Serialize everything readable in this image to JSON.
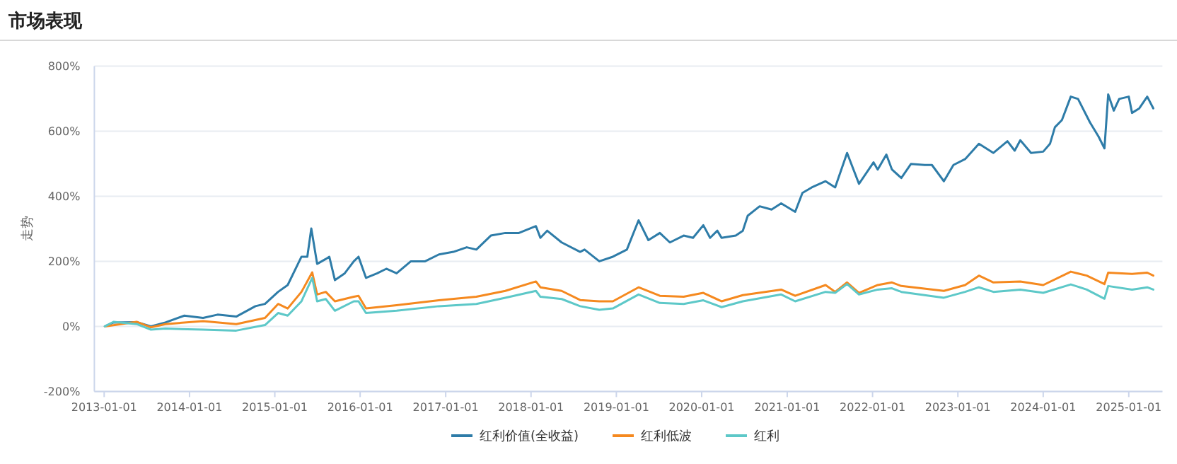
{
  "chart_data": {
    "type": "line",
    "title": "市场表现",
    "ylabel": "走势",
    "xlim": [
      "2012-11-20",
      "2025-05-25"
    ],
    "xticks": [
      "2013-01-01",
      "2014-01-01",
      "2015-01-01",
      "2016-01-01",
      "2017-01-01",
      "2018-01-01",
      "2019-01-01",
      "2020-01-01",
      "2021-01-01",
      "2022-01-01",
      "2023-01-01",
      "2024-01-01",
      "2025-01-01"
    ],
    "ylim": [
      -200,
      800
    ],
    "yticks": [
      {
        "value": -200,
        "label": "-200%"
      },
      {
        "value": 0,
        "label": "0%"
      },
      {
        "value": 200,
        "label": "200%"
      },
      {
        "value": 400,
        "label": "400%"
      },
      {
        "value": 600,
        "label": "600%"
      },
      {
        "value": 800,
        "label": "800%"
      }
    ],
    "grid": "y",
    "legend": "bottom",
    "marker": "none",
    "line_style": "solid",
    "series": [
      {
        "name": "红利价值(全收益)",
        "color": "#2e7ca8",
        "x": [
          "2013-01-04",
          "2013-02-10",
          "2013-05-20",
          "2013-07-20",
          "2013-09-20",
          "2013-12-10",
          "2014-02-28",
          "2014-05-01",
          "2014-07-20",
          "2014-10-10",
          "2014-11-20",
          "2015-01-15",
          "2015-02-25",
          "2015-04-25",
          "2015-05-20",
          "2015-06-06",
          "2015-07-01",
          "2015-08-07",
          "2015-08-22",
          "2015-09-15",
          "2015-10-27",
          "2015-12-05",
          "2015-12-25",
          "2016-01-26",
          "2016-03-14",
          "2016-04-22",
          "2016-06-05",
          "2016-08-05",
          "2016-10-05",
          "2016-12-03",
          "2017-02-03",
          "2017-04-01",
          "2017-05-12",
          "2017-07-13",
          "2017-09-13",
          "2017-11-10",
          "2018-01-22",
          "2018-02-10",
          "2018-03-11",
          "2018-05-12",
          "2018-07-30",
          "2018-08-18",
          "2018-10-20",
          "2018-12-17",
          "2019-02-15",
          "2019-04-06",
          "2019-05-18",
          "2019-07-06",
          "2019-08-18",
          "2019-10-16",
          "2019-11-25",
          "2020-01-08",
          "2020-02-06",
          "2020-03-08",
          "2020-03-26",
          "2020-05-26",
          "2020-06-25",
          "2020-07-16",
          "2020-09-05",
          "2020-10-26",
          "2020-12-06",
          "2021-02-04",
          "2021-03-07",
          "2021-04-16",
          "2021-06-14",
          "2021-07-25",
          "2021-09-14",
          "2021-11-04",
          "2022-01-05",
          "2022-01-23",
          "2022-03-01",
          "2022-03-25",
          "2022-05-04",
          "2022-06-14",
          "2022-08-12",
          "2022-09-12",
          "2022-11-02",
          "2022-12-13",
          "2023-02-01",
          "2023-04-01",
          "2023-06-02",
          "2023-08-01",
          "2023-09-01",
          "2023-09-25",
          "2023-11-10",
          "2024-01-01",
          "2024-01-30",
          "2024-02-20",
          "2024-03-21",
          "2024-04-28",
          "2024-05-29",
          "2024-07-19",
          "2024-08-25",
          "2024-09-19",
          "2024-10-05",
          "2024-10-29",
          "2024-11-21",
          "2025-01-01",
          "2025-01-15",
          "2025-02-15",
          "2025-03-21",
          "2025-04-16"
        ],
        "values": [
          0,
          12,
          13,
          0,
          12,
          33,
          26,
          36,
          30,
          62,
          69,
          106,
          127,
          214,
          214,
          301,
          192,
          207,
          214,
          142,
          163,
          200,
          214,
          149,
          163,
          177,
          163,
          200,
          200,
          221,
          229,
          243,
          236,
          279,
          287,
          287,
          308,
          272,
          294,
          258,
          229,
          236,
          200,
          214,
          236,
          326,
          265,
          287,
          258,
          279,
          272,
          311,
          272,
          294,
          272,
          279,
          294,
          340,
          369,
          359,
          378,
          352,
          410,
          427,
          446,
          427,
          533,
          438,
          504,
          482,
          528,
          482,
          456,
          499,
          496,
          496,
          446,
          496,
          514,
          561,
          533,
          569,
          540,
          572,
          533,
          537,
          561,
          612,
          634,
          706,
          699,
          627,
          583,
          547,
          713,
          663,
          699,
          706,
          656,
          670,
          706,
          670
        ]
      },
      {
        "name": "红利低波",
        "color": "#f5891f",
        "x": [
          "2013-01-04",
          "2013-05-20",
          "2013-07-20",
          "2013-09-20",
          "2014-02-28",
          "2014-07-20",
          "2014-11-20",
          "2015-01-15",
          "2015-02-25",
          "2015-04-25",
          "2015-06-10",
          "2015-07-01",
          "2015-08-07",
          "2015-09-15",
          "2015-12-05",
          "2015-12-25",
          "2016-01-26",
          "2016-06-05",
          "2016-12-03",
          "2017-05-12",
          "2017-09-13",
          "2018-01-22",
          "2018-02-10",
          "2018-05-12",
          "2018-07-30",
          "2018-10-20",
          "2018-12-17",
          "2019-04-06",
          "2019-07-06",
          "2019-10-16",
          "2020-01-08",
          "2020-03-26",
          "2020-06-25",
          "2020-12-06",
          "2021-02-04",
          "2021-06-14",
          "2021-07-25",
          "2021-09-14",
          "2021-11-04",
          "2022-01-23",
          "2022-03-25",
          "2022-05-04",
          "2022-11-02",
          "2023-02-01",
          "2023-04-01",
          "2023-06-02",
          "2023-09-25",
          "2024-01-01",
          "2024-04-28",
          "2024-07-05",
          "2024-09-19",
          "2024-10-05",
          "2025-01-15",
          "2025-03-21",
          "2025-04-16"
        ],
        "values": [
          0,
          14,
          -3,
          7,
          16,
          7,
          26,
          69,
          55,
          106,
          166,
          98,
          106,
          77,
          91,
          94,
          55,
          65,
          80,
          91,
          109,
          138,
          120,
          109,
          81,
          77,
          77,
          120,
          94,
          91,
          103,
          77,
          96,
          113,
          94,
          127,
          106,
          135,
          103,
          127,
          135,
          124,
          109,
          127,
          156,
          135,
          138,
          127,
          168,
          156,
          130,
          165,
          161,
          165,
          156
        ]
      },
      {
        "name": "红利",
        "color": "#5dc8c8",
        "x": [
          "2013-01-04",
          "2013-02-10",
          "2013-05-20",
          "2013-07-20",
          "2013-09-20",
          "2014-02-28",
          "2014-07-20",
          "2014-11-20",
          "2015-01-15",
          "2015-02-25",
          "2015-04-25",
          "2015-06-10",
          "2015-07-01",
          "2015-08-07",
          "2015-09-15",
          "2015-12-05",
          "2015-12-25",
          "2016-01-26",
          "2016-06-05",
          "2016-12-03",
          "2017-05-12",
          "2017-09-13",
          "2018-01-22",
          "2018-02-10",
          "2018-05-12",
          "2018-07-30",
          "2018-10-20",
          "2018-12-17",
          "2019-04-06",
          "2019-07-06",
          "2019-10-16",
          "2020-01-08",
          "2020-03-26",
          "2020-06-25",
          "2020-12-06",
          "2021-02-04",
          "2021-06-14",
          "2021-07-25",
          "2021-09-14",
          "2021-11-04",
          "2022-01-23",
          "2022-03-25",
          "2022-05-04",
          "2022-11-02",
          "2023-02-01",
          "2023-04-01",
          "2023-06-02",
          "2023-09-25",
          "2024-01-01",
          "2024-04-28",
          "2024-07-05",
          "2024-09-19",
          "2024-10-05",
          "2025-01-15",
          "2025-03-21",
          "2025-04-16"
        ],
        "values": [
          0,
          14,
          7,
          -10,
          -7,
          -10,
          -13,
          4,
          41,
          33,
          77,
          149,
          77,
          84,
          48,
          77,
          77,
          41,
          48,
          62,
          69,
          88,
          109,
          91,
          84,
          62,
          51,
          55,
          98,
          72,
          69,
          80,
          59,
          77,
          98,
          77,
          106,
          103,
          130,
          98,
          113,
          117,
          106,
          88,
          106,
          120,
          106,
          113,
          103,
          129,
          113,
          85,
          124,
          113,
          120,
          113
        ]
      }
    ]
  }
}
